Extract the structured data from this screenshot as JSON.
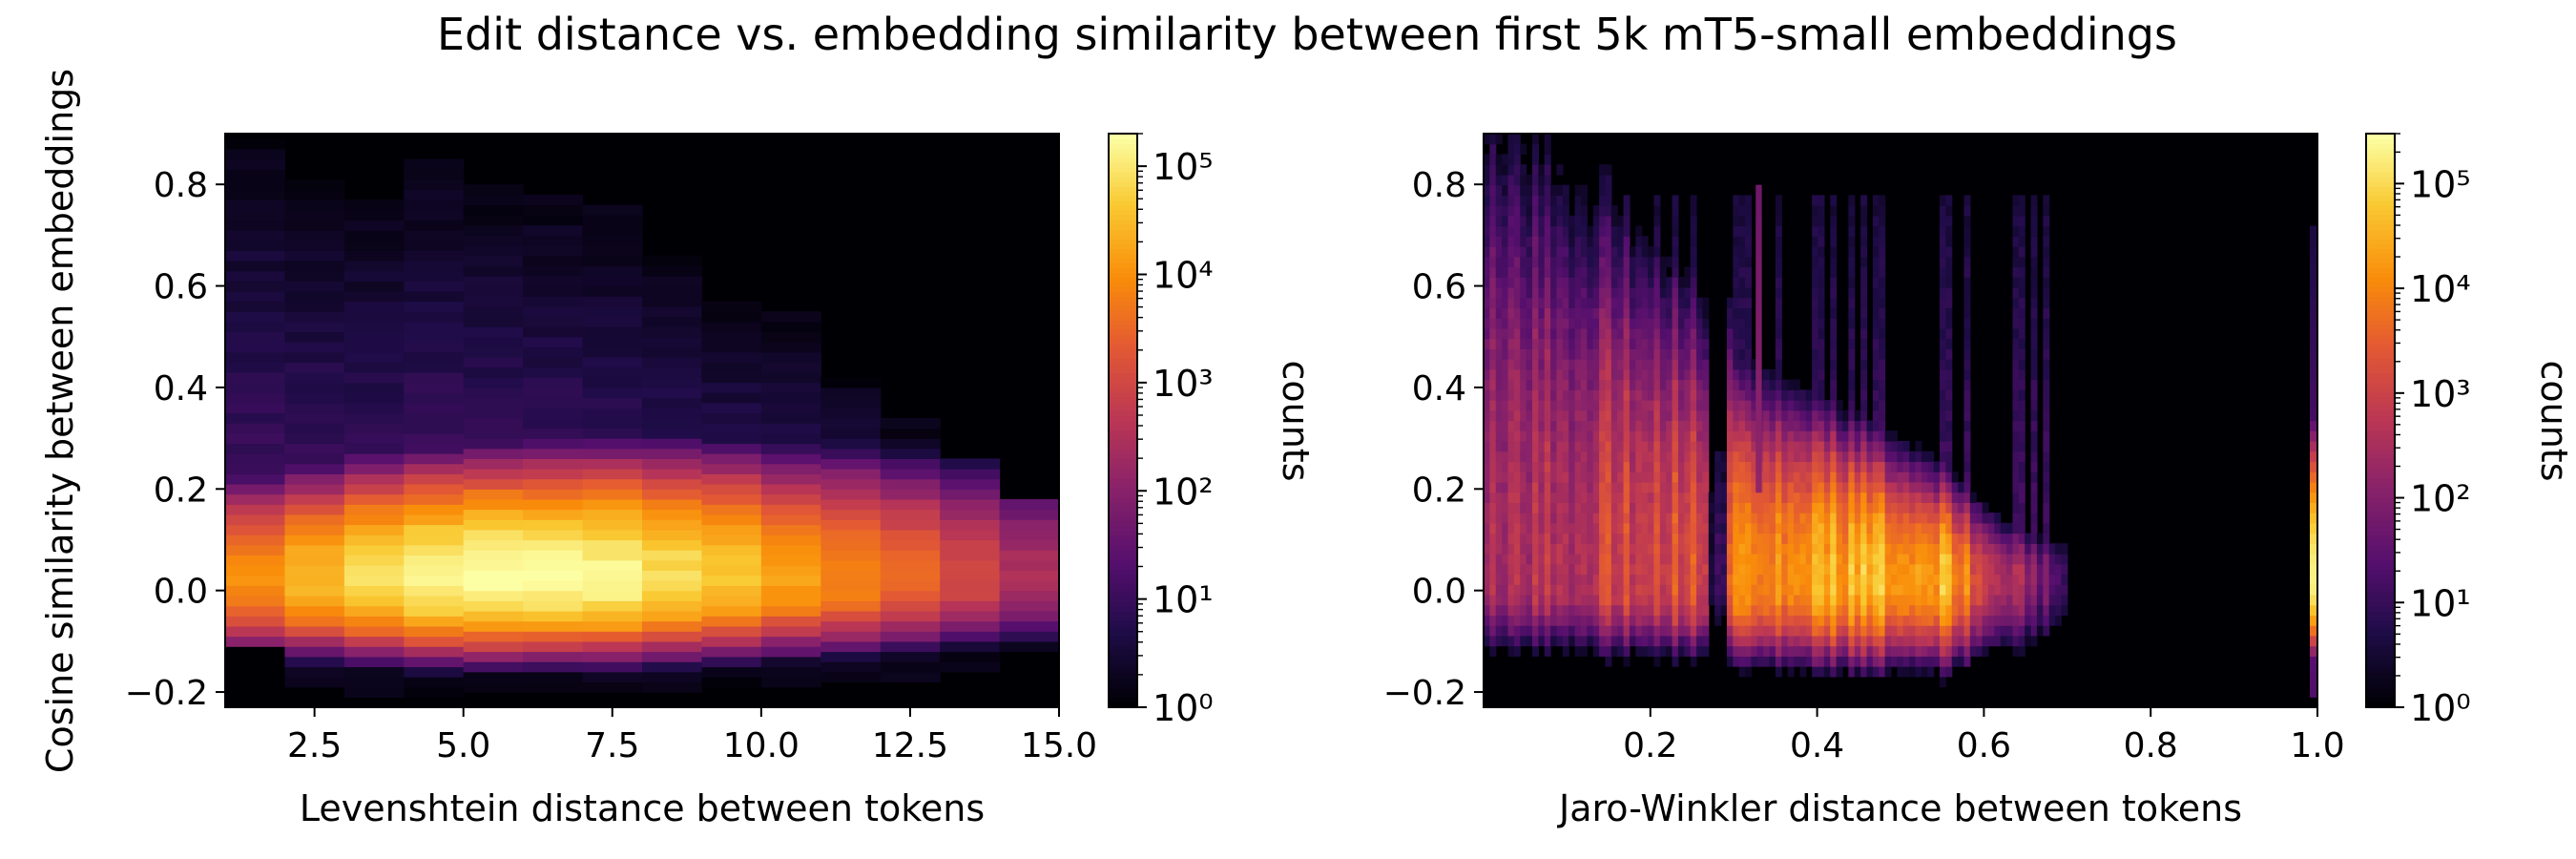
{
  "figure": {
    "title": "Edit distance vs. embedding similarity between first 5k mT5-small embeddings"
  },
  "chart_data": [
    {
      "type": "heatmap",
      "title": "",
      "xlabel": "Levenshtein distance between tokens",
      "ylabel": "Cosine similarity between embeddings",
      "xlim": [
        1,
        15
      ],
      "ylim": [
        -0.23,
        0.9
      ],
      "x_ticks": [
        2.5,
        5.0,
        7.5,
        10.0,
        12.5,
        15.0
      ],
      "x_tick_labels": [
        "2.5",
        "5.0",
        "7.5",
        "10.0",
        "12.5",
        "15.0"
      ],
      "y_ticks": [
        -0.2,
        0.0,
        0.2,
        0.4,
        0.6,
        0.8
      ],
      "y_tick_labels": [
        "−0.2",
        "0.0",
        "0.2",
        "0.4",
        "0.6",
        "0.8"
      ],
      "colormap": "inferno",
      "color_scale": "log",
      "colorbar": {
        "label": "counts",
        "range": [
          1,
          200000
        ],
        "ticks": [
          1,
          10,
          100,
          1000,
          10000,
          100000
        ],
        "tick_labels": [
          "10⁰",
          "10¹",
          "10²",
          "10³",
          "10⁴",
          "10⁵"
        ]
      },
      "columns": [
        {
          "x": 1.5,
          "ymin": -0.11,
          "ymax": 0.88,
          "peak": 10000,
          "center": 0.02
        },
        {
          "x": 2.5,
          "ymin": -0.19,
          "ymax": 0.8,
          "peak": 30000,
          "center": 0.02
        },
        {
          "x": 3.5,
          "ymin": -0.21,
          "ymax": 0.77,
          "peak": 80000,
          "center": 0.02
        },
        {
          "x": 4.5,
          "ymin": -0.21,
          "ymax": 0.85,
          "peak": 150000,
          "center": 0.02
        },
        {
          "x": 5.5,
          "ymin": -0.2,
          "ymax": 0.8,
          "peak": 200000,
          "center": 0.02
        },
        {
          "x": 6.5,
          "ymin": -0.2,
          "ymax": 0.78,
          "peak": 180000,
          "center": 0.02
        },
        {
          "x": 7.5,
          "ymin": -0.2,
          "ymax": 0.76,
          "peak": 150000,
          "center": 0.02
        },
        {
          "x": 8.5,
          "ymin": -0.2,
          "ymax": 0.65,
          "peak": 80000,
          "center": 0.02
        },
        {
          "x": 9.5,
          "ymin": -0.19,
          "ymax": 0.57,
          "peak": 40000,
          "center": 0.02
        },
        {
          "x": 10.5,
          "ymin": -0.19,
          "ymax": 0.54,
          "peak": 15000,
          "center": 0.02
        },
        {
          "x": 11.5,
          "ymin": -0.18,
          "ymax": 0.41,
          "peak": 8000,
          "center": 0.02
        },
        {
          "x": 12.5,
          "ymin": -0.18,
          "ymax": 0.33,
          "peak": 3000,
          "center": 0.02
        },
        {
          "x": 13.5,
          "ymin": -0.16,
          "ymax": 0.24,
          "peak": 1000,
          "center": 0.02
        },
        {
          "x": 14.5,
          "ymin": -0.12,
          "ymax": 0.17,
          "peak": 300,
          "center": 0.02
        }
      ]
    },
    {
      "type": "heatmap",
      "title": "",
      "xlabel": "Jaro-Winkler distance between tokens",
      "ylabel": "",
      "xlim": [
        0,
        1
      ],
      "ylim": [
        -0.23,
        0.9
      ],
      "x_ticks": [
        0.2,
        0.4,
        0.6,
        0.8,
        1.0
      ],
      "x_tick_labels": [
        "0.2",
        "0.4",
        "0.6",
        "0.8",
        "1.0"
      ],
      "y_ticks": [
        -0.2,
        0.0,
        0.2,
        0.4,
        0.6,
        0.8
      ],
      "y_tick_labels": [
        "−0.2",
        "0.0",
        "0.2",
        "0.4",
        "0.6",
        "0.8"
      ],
      "colormap": "inferno",
      "color_scale": "log",
      "colorbar": {
        "label": "counts",
        "range": [
          1,
          300000
        ],
        "ticks": [
          1,
          10,
          100,
          1000,
          10000,
          100000
        ],
        "tick_labels": [
          "10⁰",
          "10¹",
          "10²",
          "10³",
          "10⁴",
          "10⁵"
        ]
      },
      "main_density": {
        "x_range": [
          0.0,
          0.7
        ],
        "center_y": 0.02,
        "peak_x": [
          0.3,
          0.55
        ],
        "peak": 20000
      },
      "gap_x": 0.28,
      "spike_x": 0.33,
      "column_at_x1": {
        "x": 1.0,
        "ymin": -0.2,
        "ymax": 0.72,
        "peak": 200000
      }
    }
  ]
}
